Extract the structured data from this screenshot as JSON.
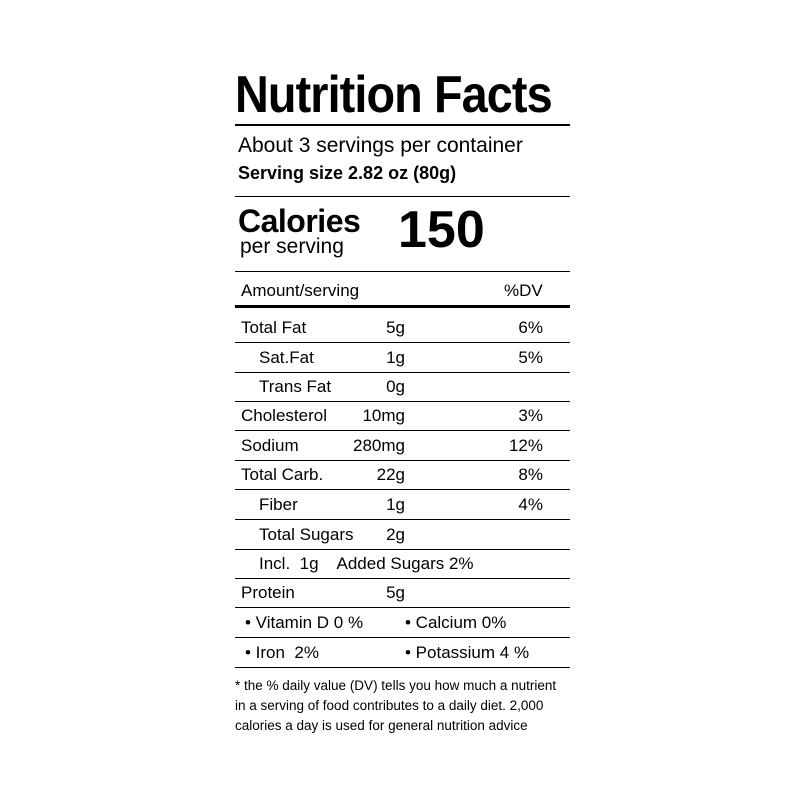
{
  "title": "Nutrition Facts",
  "servings_per_container": "About 3 servings per container",
  "serving_size": "Serving size 2.82 oz (80g)",
  "calories": {
    "label": "Calories",
    "sublabel": "per serving",
    "value": "150"
  },
  "table_header": {
    "amount": "Amount/serving",
    "dv": "%DV"
  },
  "nutrients": [
    {
      "name": "Total Fat",
      "amount": "5g",
      "dv": "6%"
    },
    {
      "name": "Sat.Fat",
      "amount": "1g",
      "dv": "5%"
    },
    {
      "name": "Trans Fat",
      "amount": "0g",
      "dv": ""
    },
    {
      "name": "Cholesterol",
      "amount": "10mg",
      "dv": "3%"
    },
    {
      "name": "Sodium",
      "amount": "280mg",
      "dv": "12%"
    },
    {
      "name": "Total Carb.",
      "amount": "22g",
      "dv": "8%"
    },
    {
      "name": "Fiber",
      "amount": "1g",
      "dv": "4%"
    },
    {
      "name": "Total Sugars",
      "amount": "2g",
      "dv": ""
    },
    {
      "text": "Incl.  1g    Added Sugars 2%"
    },
    {
      "name": "Protein",
      "amount": "5g",
      "dv": ""
    }
  ],
  "vitamins": [
    {
      "left": "• Vitamin D 0 %",
      "right": "• Calcium 0%"
    },
    {
      "left": "• Iron  2%",
      "right": "• Potassium 4 %"
    }
  ],
  "footnote": [
    "* the % daily value (DV) tells you how much a nutrient",
    "in a serving of food contributes to a daily diet. 2,000",
    "calories a day is used for general nutrition advice"
  ]
}
